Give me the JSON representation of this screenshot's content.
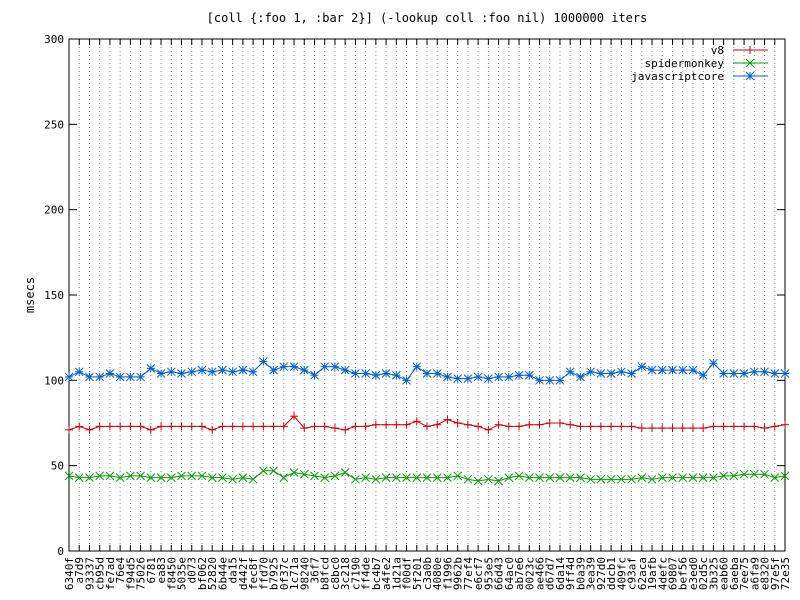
{
  "chart_data": {
    "type": "line",
    "title": "[coll {:foo 1, :bar 2}] (-lookup coll :foo nil) 1000000 iters",
    "xlabel": "",
    "ylabel": "msecs",
    "ylim": [
      0,
      300
    ],
    "yticks": [
      0,
      50,
      100,
      150,
      200,
      250,
      300
    ],
    "grid": "vertical-dotted",
    "legend_position": "top-right",
    "categories": [
      "6340f",
      "a7d9",
      "93337",
      "cb95d",
      "fe7ad",
      "76e4",
      "f94d5",
      "75026",
      "6781",
      "ea83",
      "f8450",
      "5035e",
      "d073",
      "bf062",
      "52820",
      "6b44e",
      "da15",
      "d442f",
      "fec8f",
      "ffd70",
      "b7925",
      "0f37c",
      "1c71a",
      "98240",
      "36f7",
      "b8fcd",
      "c8bc0",
      "3c218",
      "c7190",
      "ff4de",
      "bc4b7",
      "a4fe2",
      "1d21a",
      "f00df",
      "5f201",
      "c3a0b",
      "4080e",
      "f1996",
      "9962b",
      "77ef4",
      "e6cf7",
      "953e5",
      "66d43",
      "64ac0",
      "ab7e6",
      "0023c",
      "ae466",
      "d67d7",
      "6da14",
      "9ff4d",
      "b0a39",
      "3ea39",
      "927d0",
      "ddcb1",
      "409fc",
      "c93af",
      "62aca",
      "19afb",
      "4defc",
      "69807",
      "bef56",
      "e3ed0",
      "02d5c",
      "3b325",
      "eab60",
      "6aeba",
      "7ee75",
      "a6fa9",
      "e8320",
      "97e5f",
      "72e35"
    ],
    "series": [
      {
        "name": "v8",
        "color": "#d40000",
        "marker": "plus",
        "values": [
          71,
          73,
          71,
          73,
          73,
          73,
          73,
          73,
          71,
          73,
          73,
          73,
          73,
          73,
          71,
          73,
          73,
          73,
          73,
          73,
          73,
          73,
          79,
          72,
          73,
          73,
          72,
          71,
          73,
          73,
          74,
          74,
          74,
          74,
          76,
          73,
          74,
          77,
          75,
          74,
          73,
          71,
          74,
          73,
          73,
          74,
          74,
          75,
          75,
          74,
          73,
          73,
          73,
          73,
          73,
          73,
          72,
          72,
          72,
          72,
          72,
          72,
          72,
          73,
          73,
          73,
          73,
          73,
          72,
          73,
          74
        ]
      },
      {
        "name": "spidermonkey",
        "color": "#00a000",
        "marker": "cross",
        "values": [
          44,
          43,
          43,
          44,
          44,
          43,
          44,
          44,
          43,
          43,
          43,
          44,
          44,
          44,
          43,
          43,
          42,
          43,
          42,
          47,
          47,
          43,
          46,
          45,
          44,
          43,
          44,
          46,
          42,
          43,
          42,
          43,
          43,
          43,
          43,
          43,
          43,
          43,
          44,
          42,
          41,
          42,
          41,
          43,
          44,
          43,
          43,
          43,
          43,
          43,
          43,
          42,
          42,
          42,
          42,
          42,
          43,
          42,
          43,
          43,
          43,
          43,
          43,
          43,
          44,
          44,
          45,
          45,
          45,
          43,
          44
        ]
      },
      {
        "name": "javascriptcore",
        "color": "#0060d0",
        "marker": "star",
        "values": [
          102,
          105,
          102,
          102,
          104,
          102,
          102,
          102,
          107,
          104,
          105,
          104,
          105,
          106,
          105,
          106,
          105,
          106,
          105,
          111,
          106,
          108,
          108,
          106,
          103,
          108,
          108,
          106,
          104,
          104,
          103,
          104,
          103,
          100,
          108,
          104,
          104,
          102,
          101,
          101,
          102,
          101,
          102,
          102,
          103,
          103,
          100,
          100,
          100,
          105,
          102,
          105,
          104,
          104,
          105,
          104,
          108,
          106,
          106,
          106,
          106,
          106,
          103,
          110,
          104,
          104,
          104,
          105,
          105,
          104,
          104
        ]
      }
    ]
  }
}
